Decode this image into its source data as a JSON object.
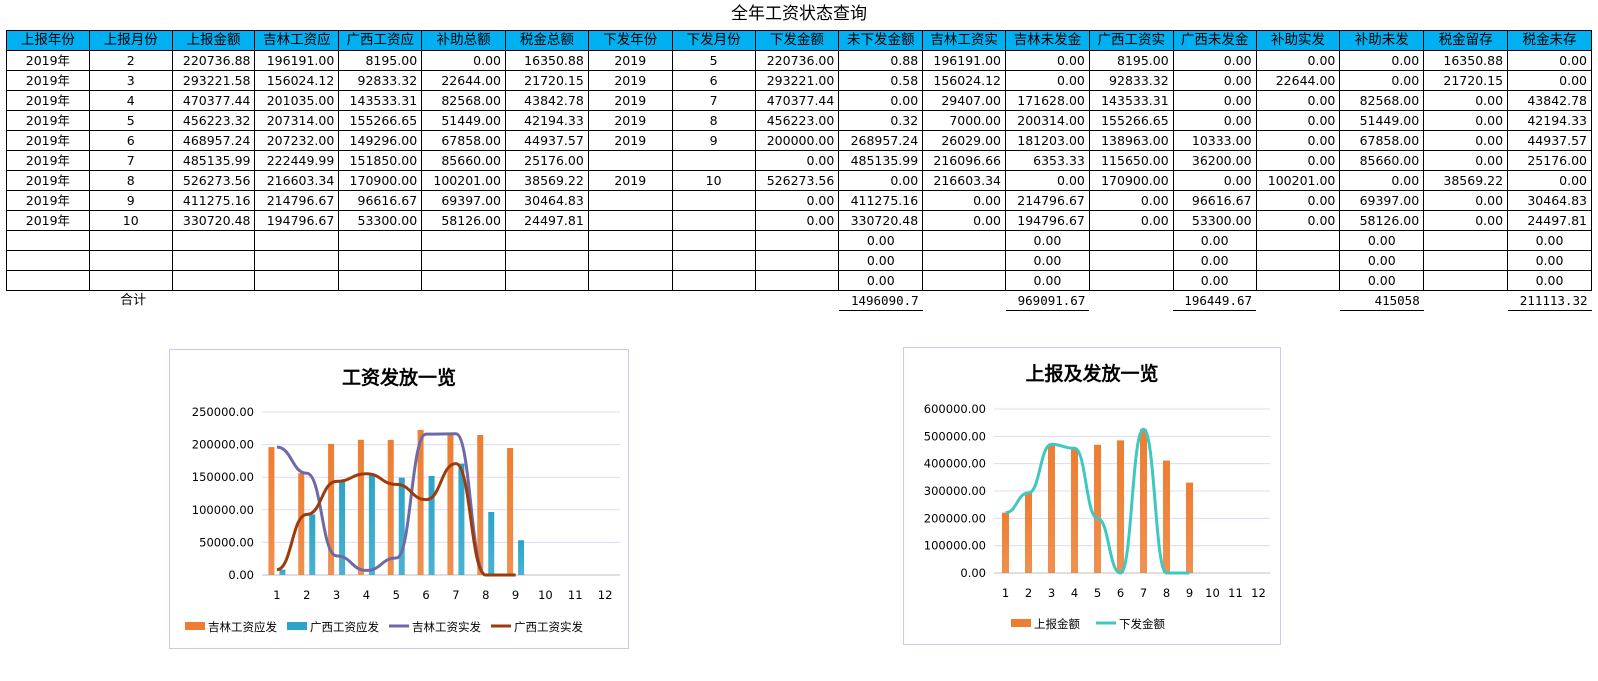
{
  "sheet": {
    "title": "全年工资状态查询",
    "headers": [
      "上报年份",
      "上报月份",
      "上报金额",
      "吉林工资应",
      "广西工资应",
      "补助总额",
      "税金总额",
      "下发年份",
      "下发月份",
      "下发金额",
      "未下发金额",
      "吉林工资实",
      "吉林未发金",
      "广西工资实",
      "广西未发金",
      "补助实发",
      "补助未发",
      "税金留存",
      "税金未存"
    ],
    "rows": [
      [
        "2019年",
        "2",
        "220736.88",
        "196191.00",
        "8195.00",
        "0.00",
        "16350.88",
        "2019",
        "5",
        "220736.00",
        "0.88",
        "196191.00",
        "0.00",
        "8195.00",
        "0.00",
        "0.00",
        "0.00",
        "16350.88",
        "0.00"
      ],
      [
        "2019年",
        "3",
        "293221.58",
        "156024.12",
        "92833.32",
        "22644.00",
        "21720.15",
        "2019",
        "6",
        "293221.00",
        "0.58",
        "156024.12",
        "0.00",
        "92833.32",
        "0.00",
        "22644.00",
        "0.00",
        "21720.15",
        "0.00"
      ],
      [
        "2019年",
        "4",
        "470377.44",
        "201035.00",
        "143533.31",
        "82568.00",
        "43842.78",
        "2019",
        "7",
        "470377.44",
        "0.00",
        "29407.00",
        "171628.00",
        "143533.31",
        "0.00",
        "0.00",
        "82568.00",
        "0.00",
        "43842.78"
      ],
      [
        "2019年",
        "5",
        "456223.32",
        "207314.00",
        "155266.65",
        "51449.00",
        "42194.33",
        "2019",
        "8",
        "456223.00",
        "0.32",
        "7000.00",
        "200314.00",
        "155266.65",
        "0.00",
        "0.00",
        "51449.00",
        "0.00",
        "42194.33"
      ],
      [
        "2019年",
        "6",
        "468957.24",
        "207232.00",
        "149296.00",
        "67858.00",
        "44937.57",
        "2019",
        "9",
        "200000.00",
        "268957.24",
        "26029.00",
        "181203.00",
        "138963.00",
        "10333.00",
        "0.00",
        "67858.00",
        "0.00",
        "44937.57"
      ],
      [
        "2019年",
        "7",
        "485135.99",
        "222449.99",
        "151850.00",
        "85660.00",
        "25176.00",
        "",
        "",
        "0.00",
        "485135.99",
        "216096.66",
        "6353.33",
        "115650.00",
        "36200.00",
        "0.00",
        "85660.00",
        "0.00",
        "25176.00"
      ],
      [
        "2019年",
        "8",
        "526273.56",
        "216603.34",
        "170900.00",
        "100201.00",
        "38569.22",
        "2019",
        "10",
        "526273.56",
        "0.00",
        "216603.34",
        "0.00",
        "170900.00",
        "0.00",
        "100201.00",
        "0.00",
        "38569.22",
        "0.00"
      ],
      [
        "2019年",
        "9",
        "411275.16",
        "214796.67",
        "96616.67",
        "69397.00",
        "30464.83",
        "",
        "",
        "0.00",
        "411275.16",
        "0.00",
        "214796.67",
        "0.00",
        "96616.67",
        "0.00",
        "69397.00",
        "0.00",
        "30464.83"
      ],
      [
        "2019年",
        "10",
        "330720.48",
        "194796.67",
        "53300.00",
        "58126.00",
        "24497.81",
        "",
        "",
        "0.00",
        "330720.48",
        "0.00",
        "194796.67",
        "0.00",
        "53300.00",
        "0.00",
        "58126.00",
        "0.00",
        "24497.81"
      ],
      [
        "",
        "",
        "",
        "",
        "",
        "",
        "",
        "",
        "",
        "",
        "0.00",
        "",
        "0.00",
        "",
        "0.00",
        "",
        "0.00",
        "",
        "0.00"
      ],
      [
        "",
        "",
        "",
        "",
        "",
        "",
        "",
        "",
        "",
        "",
        "0.00",
        "",
        "0.00",
        "",
        "0.00",
        "",
        "0.00",
        "",
        "0.00"
      ],
      [
        "",
        "",
        "",
        "",
        "",
        "",
        "",
        "",
        "",
        "",
        "0.00",
        "",
        "0.00",
        "",
        "0.00",
        "",
        "0.00",
        "",
        "0.00"
      ]
    ],
    "total_label": "合计",
    "totals": {
      "c10": "1496090.7",
      "c12": "969091.67",
      "c14": "196449.67",
      "c16": "415058",
      "c18": "211113.32"
    }
  },
  "chart_data": [
    {
      "type": "bar",
      "title": "工资发放一览",
      "categories": [
        "1",
        "2",
        "3",
        "4",
        "5",
        "6",
        "7",
        "8",
        "9",
        "10",
        "11",
        "12"
      ],
      "ylim": [
        0,
        250000
      ],
      "yticks": [
        "0.00",
        "50000.00",
        "100000.00",
        "150000.00",
        "200000.00",
        "250000.00"
      ],
      "grid": true,
      "legend_position": "bottom",
      "series": [
        {
          "name": "吉林工资应发",
          "type": "bar",
          "color": "#ed7d31",
          "values": [
            196191.0,
            156024.12,
            201035.0,
            207314.0,
            207232.0,
            222449.99,
            216603.34,
            214796.67,
            194796.67,
            null,
            null,
            null
          ]
        },
        {
          "name": "广西工资应发",
          "type": "bar",
          "color": "#2ba4c8",
          "values": [
            8195.0,
            92833.32,
            143533.31,
            155266.65,
            149296.0,
            151850.0,
            170900.0,
            96616.67,
            53300.0,
            null,
            null,
            null
          ]
        },
        {
          "name": "吉林工资实发",
          "type": "line",
          "color": "#6d6aa8",
          "values": [
            196191.0,
            156024.12,
            29407.0,
            7000.0,
            26029.0,
            216096.66,
            216603.34,
            0,
            0,
            null,
            null,
            null
          ]
        },
        {
          "name": "广西工资实发",
          "type": "line",
          "color": "#9c3b0c",
          "values": [
            8195.0,
            92833.32,
            143533.31,
            155266.65,
            138963.0,
            115650.0,
            170900.0,
            0,
            0,
            null,
            null,
            null
          ]
        }
      ]
    },
    {
      "type": "bar",
      "title": "上报及发放一览",
      "categories": [
        "1",
        "2",
        "3",
        "4",
        "5",
        "6",
        "7",
        "8",
        "9",
        "10",
        "11",
        "12"
      ],
      "ylim": [
        0,
        600000
      ],
      "yticks": [
        "0.00",
        "100000.00",
        "200000.00",
        "300000.00",
        "400000.00",
        "500000.00",
        "600000.00"
      ],
      "grid": true,
      "legend_position": "bottom",
      "series": [
        {
          "name": "上报金额",
          "type": "bar",
          "color": "#ed7d31",
          "values": [
            220736.88,
            293221.58,
            470377.44,
            456223.32,
            468957.24,
            485135.99,
            526273.56,
            411275.16,
            330720.48,
            null,
            null,
            null
          ]
        },
        {
          "name": "下发金额",
          "type": "line",
          "color": "#3ec9c0",
          "values": [
            220736.0,
            293221.0,
            470377.44,
            456223.0,
            200000.0,
            0,
            526273.56,
            0,
            0,
            null,
            null,
            null
          ]
        }
      ]
    }
  ]
}
